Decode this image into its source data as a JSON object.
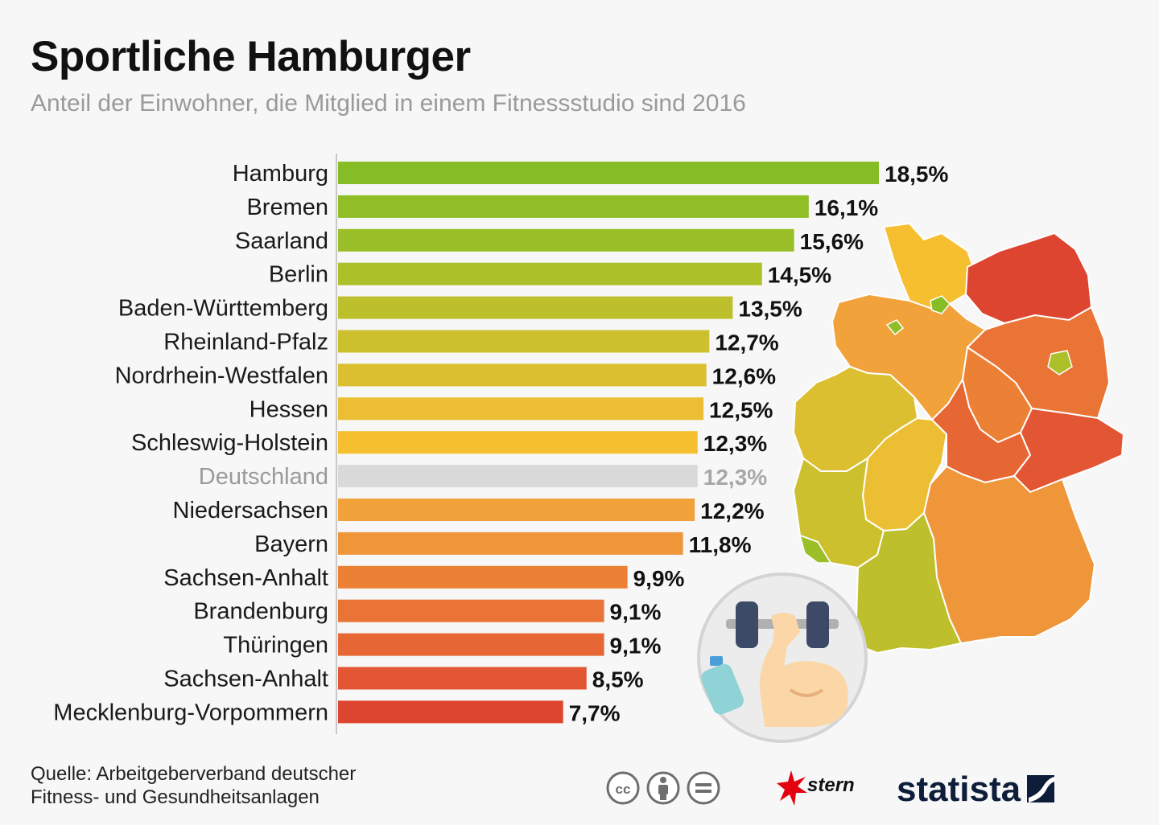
{
  "title": "Sportliche Hamburger",
  "subtitle": "Anteil der Einwohner, die Mitglied in einem Fitnessstudio sind 2016",
  "chart_data": {
    "type": "bar",
    "orientation": "horizontal",
    "categories": [
      "Hamburg",
      "Bremen",
      "Saarland",
      "Berlin",
      "Baden-Württemberg",
      "Rheinland-Pfalz",
      "Nordrhein-Westfalen",
      "Hessen",
      "Schleswig-Holstein",
      "Deutschland",
      "Niedersachsen",
      "Bayern",
      "Sachsen-Anhalt",
      "Brandenburg",
      "Thüringen",
      "Sachsen-Anhalt",
      "Mecklenburg-Vorpommern"
    ],
    "values": [
      18.5,
      16.1,
      15.6,
      14.5,
      13.5,
      12.7,
      12.6,
      12.5,
      12.3,
      12.3,
      12.2,
      11.8,
      9.9,
      9.1,
      9.1,
      8.5,
      7.7
    ],
    "value_labels": [
      "18,5%",
      "16,1%",
      "15,6%",
      "14,5%",
      "13,5%",
      "12,7%",
      "12,6%",
      "12,5%",
      "12,3%",
      "12,3%",
      "12,2%",
      "11,8%",
      "9,9%",
      "9,1%",
      "9,1%",
      "8,5%",
      "7,7%"
    ],
    "colors": [
      "#86bc25",
      "#8fbe26",
      "#9bbf28",
      "#acc02a",
      "#bdc02c",
      "#cdc02e",
      "#dbbf30",
      "#ecbe33",
      "#f6bf2f",
      "#d9d9d9",
      "#f2a23a",
      "#f0963a",
      "#ec8136",
      "#e97435",
      "#e66734",
      "#e25633",
      "#de4530"
    ],
    "highlight_category": "Deutschland",
    "xlim": [
      0,
      18.5
    ],
    "grid": false,
    "legend": "none"
  },
  "source": {
    "line1": "Quelle: Arbeitgeberverband deutscher",
    "line2": "Fitness- und Gesundheitsanlagen"
  },
  "logos": {
    "stern": "stern",
    "statista": "statista"
  },
  "icons": [
    "cc-icon",
    "by-icon",
    "nd-icon",
    "dumbbell-arm-icon",
    "water-bottle-icon"
  ]
}
